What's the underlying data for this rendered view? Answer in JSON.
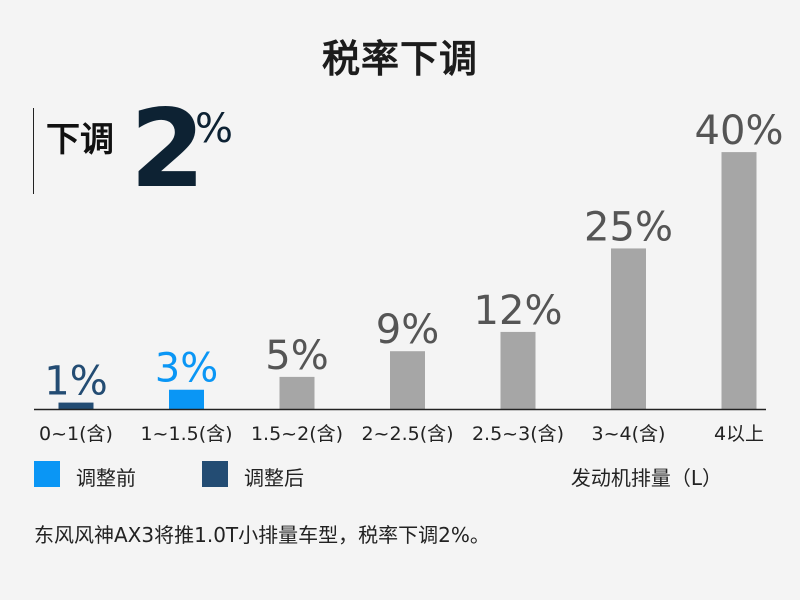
{
  "title": "税率下调",
  "callout": {
    "label": "下调",
    "number": "2",
    "unit": "%"
  },
  "chart_data": {
    "type": "bar",
    "xlabel": "发动机排量（L）",
    "categories": [
      "0~1(含)",
      "1~1.5(含)",
      "1.5~2(含)",
      "2~2.5(含)",
      "2.5~3(含)",
      "3~4(含)",
      "4以上"
    ],
    "values": [
      1,
      3,
      5,
      9,
      12,
      25,
      40
    ],
    "value_labels": [
      "1%",
      "3%",
      "5%",
      "9%",
      "12%",
      "25%",
      "40%"
    ],
    "bar_roles": [
      "after",
      "before",
      "other",
      "other",
      "other",
      "other",
      "other"
    ],
    "ylim": [
      0,
      45
    ],
    "grid": false
  },
  "legend": [
    {
      "label": "调整前",
      "color": "#0a96f5"
    },
    {
      "label": "调整后",
      "color": "#234c73"
    }
  ],
  "colors": {
    "before": "#0a96f5",
    "after": "#234c73",
    "other": "#a6a6a6",
    "after_label": "#234c73",
    "before_label": "#0a96f5",
    "other_label": "#555555"
  },
  "note": "东风风神AX3将推1.0T小排量车型，税率下调2%。"
}
